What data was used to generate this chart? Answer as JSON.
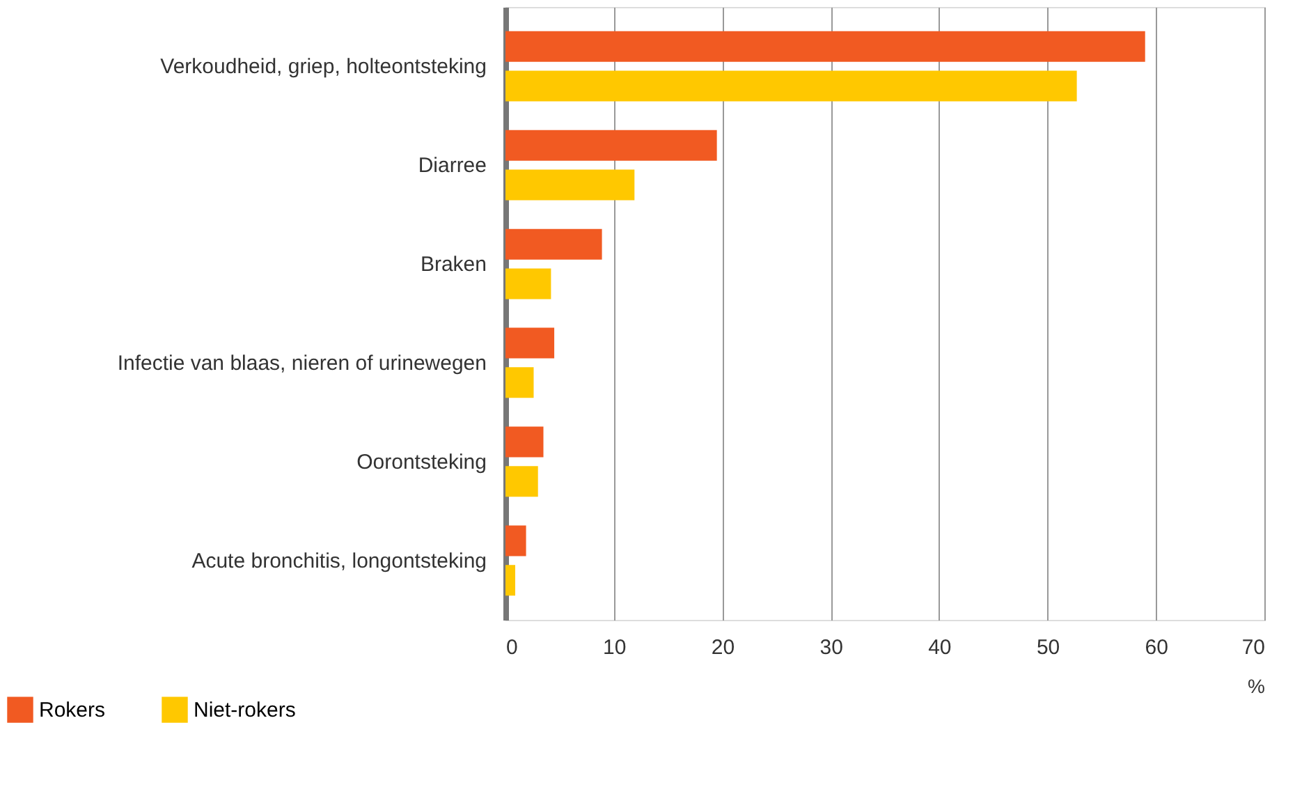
{
  "chart_data": {
    "type": "bar",
    "orientation": "horizontal",
    "categories": [
      "Verkoudheid, griep, holteontsteking",
      "Diarree",
      "Braken",
      "Infectie van blaas, nieren of urinewegen",
      "Oorontsteking",
      "Acute bronchitis, longontsteking"
    ],
    "series": [
      {
        "name": "Rokers",
        "color": "#f15a22",
        "values": [
          59,
          19.5,
          8.9,
          4.5,
          3.5,
          1.9
        ]
      },
      {
        "name": "Niet-rokers",
        "color": "#ffc800",
        "values": [
          52.7,
          11.9,
          4.2,
          2.6,
          3.0,
          0.9
        ]
      }
    ],
    "xlim": [
      0,
      70
    ],
    "xticks": [
      0,
      10,
      20,
      30,
      40,
      50,
      60,
      70
    ],
    "xlabel": "%",
    "grid": "x",
    "legend": "bottom left"
  }
}
